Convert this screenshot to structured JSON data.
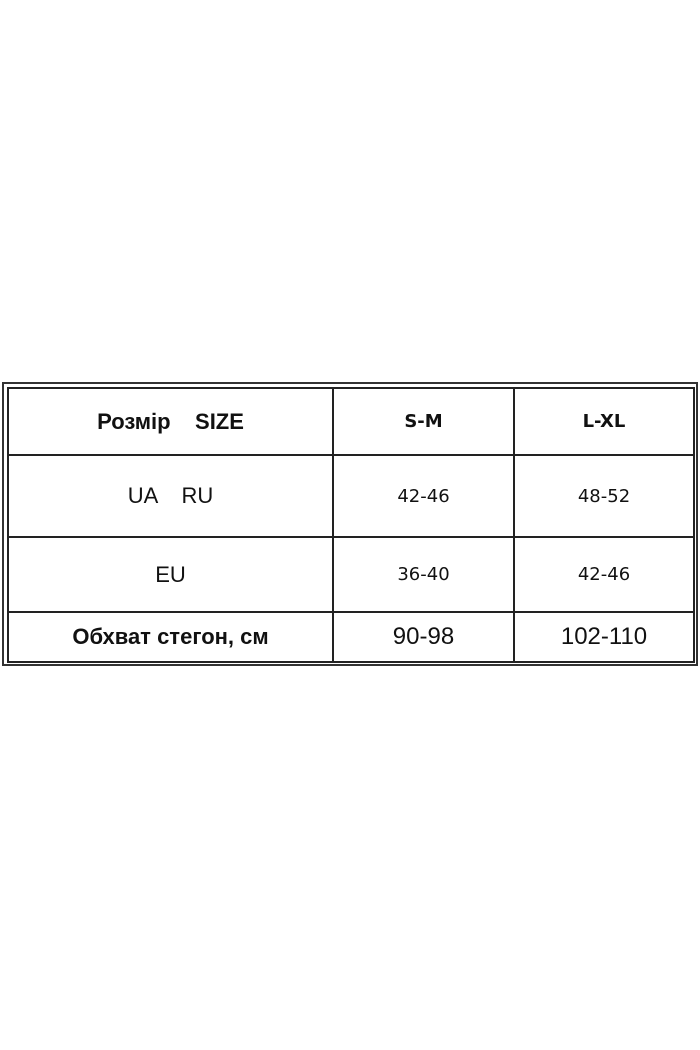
{
  "table": {
    "header": [
      "Розмір    SIZE",
      "S-M",
      "L-XL"
    ],
    "rows": [
      [
        "UA    RU",
        "42-46",
        "48-52"
      ],
      [
        "EU",
        "36-40",
        "42-46"
      ],
      [
        "Обхват стегон, см",
        "90-98",
        "102-110"
      ]
    ]
  }
}
